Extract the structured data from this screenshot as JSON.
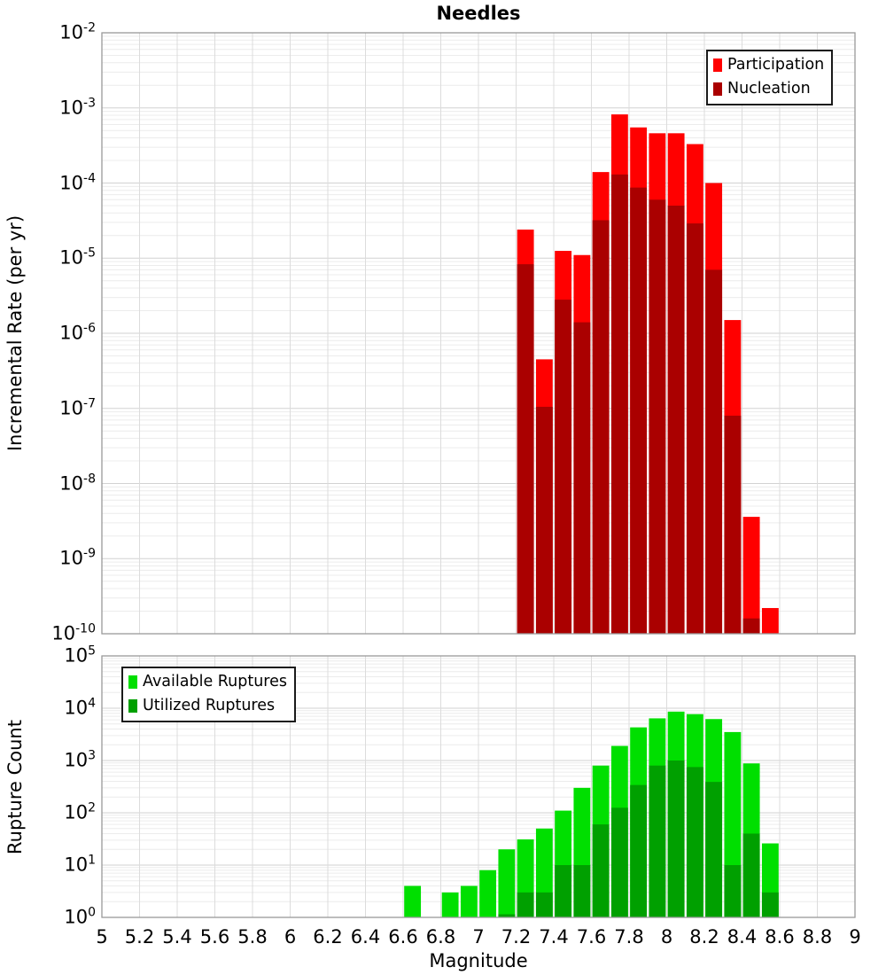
{
  "title": "Needles",
  "x_axis": {
    "label": "Magnitude",
    "min": 5,
    "max": 9,
    "tick_step": 0.2,
    "ticks": [
      "5",
      "5.2",
      "5.4",
      "5.6",
      "5.8",
      "6",
      "6.2",
      "6.4",
      "6.6",
      "6.8",
      "7",
      "7.2",
      "7.4",
      "7.6",
      "7.8",
      "8",
      "8.2",
      "8.4",
      "8.6",
      "8.8",
      "9"
    ]
  },
  "chart_data": [
    {
      "type": "bar",
      "panel": "incremental-rate",
      "title": "Needles",
      "xlabel": "Magnitude",
      "ylabel": "Incremental Rate (per yr)",
      "y_scale": "log",
      "ylim": [
        1e-10,
        0.01
      ],
      "y_tick_exponents": [
        -2,
        -3,
        -4,
        -5,
        -6,
        -7,
        -8,
        -9,
        -10
      ],
      "grid": true,
      "legend_position": "top-right",
      "bin_width": 0.1,
      "bins": [
        7.25,
        7.35,
        7.45,
        7.55,
        7.65,
        7.75,
        7.85,
        7.95,
        8.05,
        8.15,
        8.25,
        8.35,
        8.45,
        8.55
      ],
      "series": [
        {
          "name": "Participation",
          "color": "#FF0000",
          "values": [
            2.4e-05,
            4.5e-07,
            1.25e-05,
            1.1e-05,
            0.00014,
            0.00082,
            0.00055,
            0.00046,
            0.00046,
            0.00033,
            0.0001,
            1.5e-06,
            3.6e-09,
            2.2e-10
          ]
        },
        {
          "name": "Nucleation",
          "color": "#AA0000",
          "values": [
            8.3e-06,
            1.05e-07,
            2.8e-06,
            1.4e-06,
            3.2e-05,
            0.00013,
            8.7e-05,
            6e-05,
            5e-05,
            2.9e-05,
            7e-06,
            8e-08,
            1.6e-10,
            null
          ]
        }
      ]
    },
    {
      "type": "bar",
      "panel": "rupture-count",
      "xlabel": "Magnitude",
      "ylabel": "Rupture Count",
      "y_scale": "log",
      "ylim": [
        1,
        100000.0
      ],
      "y_tick_exponents": [
        5,
        4,
        3,
        2,
        1,
        0
      ],
      "grid": true,
      "legend_position": "top-left",
      "bin_width": 0.1,
      "bins": [
        6.65,
        6.85,
        6.95,
        7.05,
        7.15,
        7.25,
        7.35,
        7.45,
        7.55,
        7.65,
        7.75,
        7.85,
        7.95,
        8.05,
        8.15,
        8.25,
        8.35,
        8.45,
        8.55
      ],
      "series": [
        {
          "name": "Available Ruptures",
          "color": "#00DF00",
          "values": [
            4,
            3,
            4,
            8,
            20,
            31,
            50,
            110,
            300,
            800,
            1900,
            4300,
            6400,
            8600,
            7700,
            6200,
            3500,
            880,
            26
          ]
        },
        {
          "name": "Utilized Ruptures",
          "color": "#00A000",
          "values": [
            0,
            0,
            0,
            0,
            1,
            3,
            3,
            10,
            10,
            60,
            125,
            340,
            800,
            1000,
            750,
            390,
            10,
            40,
            3
          ]
        }
      ]
    }
  ]
}
